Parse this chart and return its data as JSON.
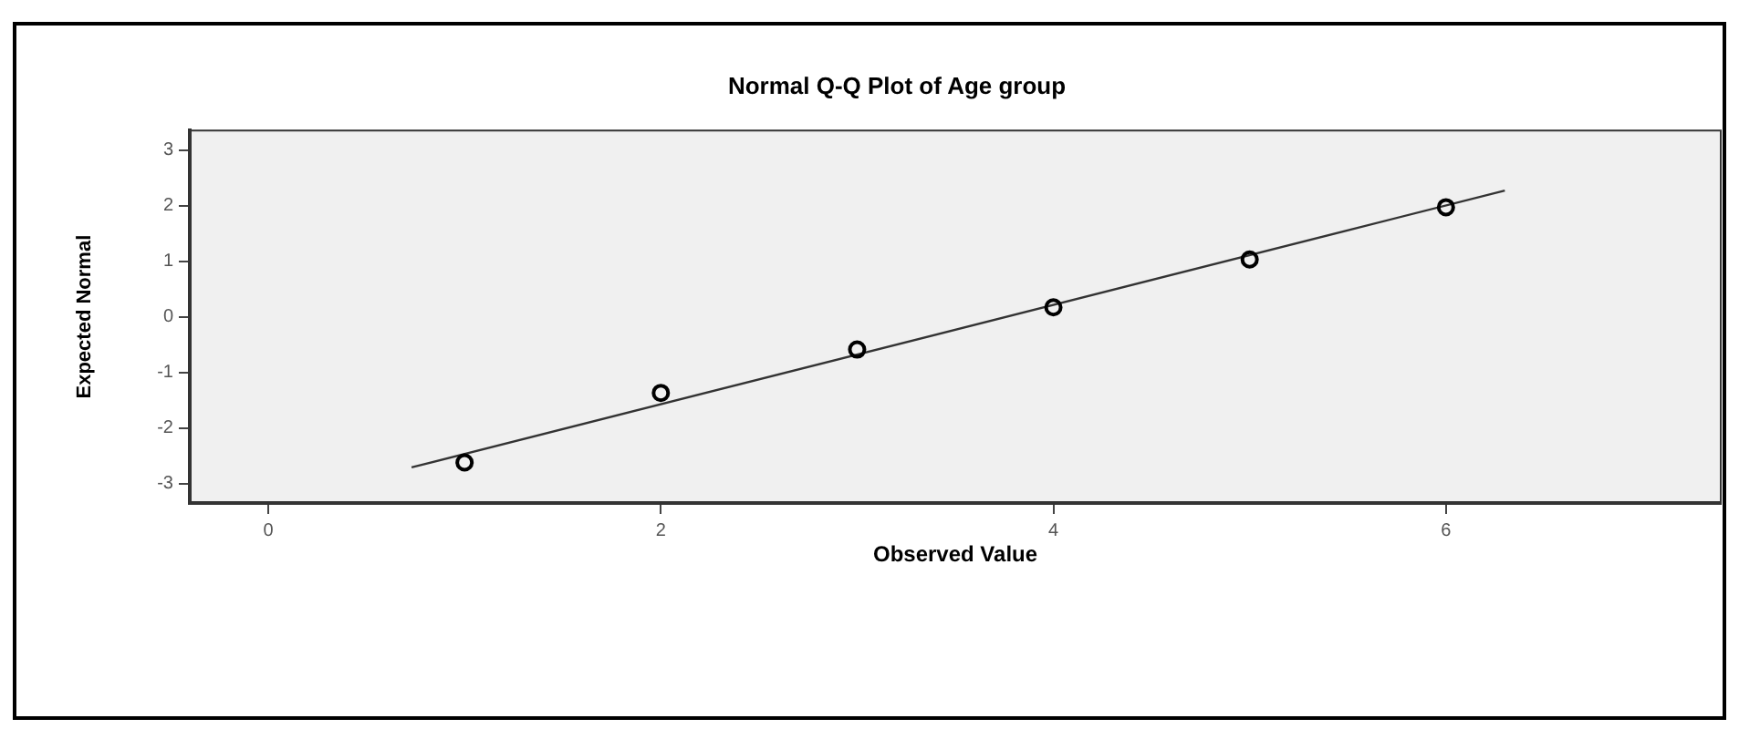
{
  "chart_data": {
    "type": "scatter",
    "title": "Normal Q-Q Plot of Age group",
    "xlabel": "Observed Value",
    "ylabel": "Expected Normal",
    "xlim": [
      -0.4,
      7.4
    ],
    "xticks": [
      0,
      2,
      4,
      6
    ],
    "ylim": [
      -3.35,
      3.35
    ],
    "yticks": [
      -3,
      -2,
      -1,
      0,
      1,
      2,
      3
    ],
    "grid": false,
    "legend": false,
    "marker": "circle",
    "series": [
      {
        "color": "#000000",
        "x": [
          1,
          2,
          3,
          4,
          5,
          6
        ],
        "values": [
          -2.62,
          -1.37,
          -0.59,
          0.17,
          1.03,
          1.97
        ]
      },
      {
        "type": "line",
        "color": "#333333",
        "marker": "none",
        "x": [
          0.73,
          6.3
        ],
        "values": [
          -2.71,
          2.27
        ]
      }
    ]
  }
}
